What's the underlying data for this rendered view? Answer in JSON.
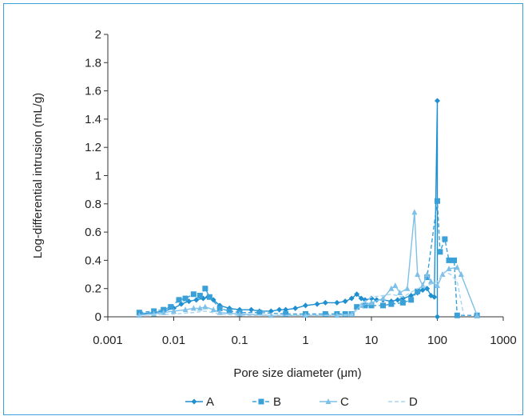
{
  "chart_data": {
    "type": "line",
    "xlabel": "Pore size diameter (μm)",
    "ylabel": "Log-differential intrusion (mL/g)",
    "xscale": "log",
    "xlim": [
      0.001,
      1000
    ],
    "ylim": [
      0,
      2
    ],
    "x_ticks": [
      "0.001",
      "0.01",
      "0.1",
      "1",
      "10",
      "100",
      "1000"
    ],
    "y_ticks": [
      "0",
      "0.2",
      "0.4",
      "0.6",
      "0.8",
      "1",
      "1.2",
      "1.4",
      "1.6",
      "1.8",
      "2"
    ],
    "legend_position": "bottom",
    "grid": false,
    "series": [
      {
        "name": "A",
        "color": "#1f8fd0",
        "marker": "diamond",
        "dash": "solid",
        "points": [
          [
            0.003,
            0.02
          ],
          [
            0.005,
            0.03
          ],
          [
            0.007,
            0.04
          ],
          [
            0.01,
            0.06
          ],
          [
            0.013,
            0.09
          ],
          [
            0.017,
            0.11
          ],
          [
            0.022,
            0.12
          ],
          [
            0.028,
            0.13
          ],
          [
            0.033,
            0.14
          ],
          [
            0.04,
            0.12
          ],
          [
            0.05,
            0.08
          ],
          [
            0.07,
            0.06
          ],
          [
            0.1,
            0.05
          ],
          [
            0.15,
            0.05
          ],
          [
            0.2,
            0.04
          ],
          [
            0.3,
            0.04
          ],
          [
            0.4,
            0.05
          ],
          [
            0.5,
            0.05
          ],
          [
            0.7,
            0.06
          ],
          [
            1,
            0.08
          ],
          [
            1.5,
            0.09
          ],
          [
            2,
            0.1
          ],
          [
            3,
            0.1
          ],
          [
            4,
            0.11
          ],
          [
            5,
            0.13
          ],
          [
            6,
            0.16
          ],
          [
            7,
            0.13
          ],
          [
            8,
            0.12
          ],
          [
            10,
            0.13
          ],
          [
            12,
            0.12
          ],
          [
            15,
            0.12
          ],
          [
            20,
            0.11
          ],
          [
            25,
            0.12
          ],
          [
            30,
            0.13
          ],
          [
            40,
            0.15
          ],
          [
            50,
            0.17
          ],
          [
            60,
            0.19
          ],
          [
            70,
            0.2
          ],
          [
            80,
            0.15
          ],
          [
            90,
            0.14
          ],
          [
            100,
            1.53
          ],
          [
            100,
            0
          ]
        ]
      },
      {
        "name": "B",
        "color": "#3aa0d8",
        "marker": "square",
        "dash": "dashed",
        "points": [
          [
            0.003,
            0.03
          ],
          [
            0.005,
            0.04
          ],
          [
            0.007,
            0.05
          ],
          [
            0.009,
            0.07
          ],
          [
            0.012,
            0.12
          ],
          [
            0.015,
            0.13
          ],
          [
            0.02,
            0.16
          ],
          [
            0.025,
            0.15
          ],
          [
            0.03,
            0.2
          ],
          [
            0.035,
            0.14
          ],
          [
            0.05,
            0.06
          ],
          [
            0.07,
            0.04
          ],
          [
            0.1,
            0.03
          ],
          [
            0.2,
            0.03
          ],
          [
            0.5,
            0.02
          ],
          [
            1,
            0.02
          ],
          [
            2,
            0.02
          ],
          [
            3,
            0.02
          ],
          [
            4,
            0.02
          ],
          [
            5,
            0.02
          ],
          [
            6,
            0.07
          ],
          [
            8,
            0.08
          ],
          [
            10,
            0.08
          ],
          [
            15,
            0.08
          ],
          [
            20,
            0.09
          ],
          [
            30,
            0.1
          ],
          [
            40,
            0.12
          ],
          [
            50,
            0.18
          ],
          [
            70,
            0.28
          ],
          [
            100,
            0.82
          ],
          [
            110,
            0.46
          ],
          [
            130,
            0.55
          ],
          [
            150,
            0.4
          ],
          [
            180,
            0.4
          ],
          [
            200,
            0.01
          ],
          [
            400,
            0.01
          ]
        ]
      },
      {
        "name": "C",
        "color": "#7ec0e8",
        "marker": "triangle",
        "dash": "solid",
        "points": [
          [
            0.003,
            0.01
          ],
          [
            0.005,
            0.02
          ],
          [
            0.007,
            0.03
          ],
          [
            0.01,
            0.04
          ],
          [
            0.015,
            0.05
          ],
          [
            0.02,
            0.06
          ],
          [
            0.025,
            0.06
          ],
          [
            0.03,
            0.07
          ],
          [
            0.04,
            0.05
          ],
          [
            0.05,
            0.03
          ],
          [
            0.1,
            0.02
          ],
          [
            0.3,
            0.01
          ],
          [
            1,
            0.01
          ],
          [
            3,
            0.01
          ],
          [
            5,
            0.02
          ],
          [
            7,
            0.08
          ],
          [
            10,
            0.1
          ],
          [
            15,
            0.13
          ],
          [
            20,
            0.2
          ],
          [
            23,
            0.22
          ],
          [
            27,
            0.17
          ],
          [
            35,
            0.2
          ],
          [
            45,
            0.74
          ],
          [
            50,
            0.3
          ],
          [
            60,
            0.22
          ],
          [
            70,
            0.3
          ],
          [
            80,
            0.25
          ],
          [
            100,
            0.22
          ],
          [
            120,
            0.3
          ],
          [
            150,
            0.34
          ],
          [
            200,
            0.35
          ],
          [
            230,
            0.3
          ],
          [
            400,
            0.01
          ]
        ]
      },
      {
        "name": "D",
        "color": "#a9d5ef",
        "marker": "none",
        "dash": "dashed",
        "points": [
          [
            0.003,
            0.01
          ],
          [
            0.01,
            0.02
          ],
          [
            0.02,
            0.03
          ],
          [
            0.03,
            0.04
          ],
          [
            0.05,
            0.02
          ],
          [
            0.1,
            0.01
          ],
          [
            1,
            0.01
          ],
          [
            5,
            0.01
          ],
          [
            8,
            0.11
          ],
          [
            10,
            0.14
          ],
          [
            15,
            0.15
          ],
          [
            20,
            0.16
          ],
          [
            30,
            0.14
          ],
          [
            50,
            0.2
          ],
          [
            70,
            0.22
          ],
          [
            100,
            0.25
          ],
          [
            130,
            0.32
          ],
          [
            160,
            0.3
          ],
          [
            200,
            0.25
          ],
          [
            250,
            0.02
          ]
        ]
      }
    ]
  }
}
